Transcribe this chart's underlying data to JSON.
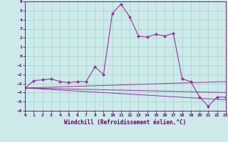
{
  "xlabel": "Windchill (Refroidissement éolien,°C)",
  "bg_color": "#cceaea",
  "grid_color": "#aacccc",
  "line_color": "#993399",
  "xlim": [
    0,
    23
  ],
  "ylim": [
    -6,
    6
  ],
  "xticks": [
    0,
    1,
    2,
    3,
    4,
    5,
    6,
    7,
    8,
    9,
    10,
    11,
    12,
    13,
    14,
    15,
    16,
    17,
    18,
    19,
    20,
    21,
    22,
    23
  ],
  "yticks": [
    -6,
    -5,
    -4,
    -3,
    -2,
    -1,
    0,
    1,
    2,
    3,
    4,
    5,
    6
  ],
  "series": [
    [
      0,
      -3.5
    ],
    [
      1,
      -2.7
    ],
    [
      2,
      -2.6
    ],
    [
      3,
      -2.5
    ],
    [
      4,
      -2.8
    ],
    [
      5,
      -2.9
    ],
    [
      6,
      -2.8
    ],
    [
      7,
      -2.8
    ],
    [
      8,
      -1.2
    ],
    [
      9,
      -2.0
    ],
    [
      10,
      4.7
    ],
    [
      11,
      5.7
    ],
    [
      12,
      4.3
    ],
    [
      13,
      2.2
    ],
    [
      14,
      2.1
    ],
    [
      15,
      2.4
    ],
    [
      16,
      2.2
    ],
    [
      17,
      2.5
    ],
    [
      18,
      -2.5
    ],
    [
      19,
      -2.8
    ],
    [
      20,
      -4.5
    ],
    [
      21,
      -5.5
    ],
    [
      22,
      -4.5
    ],
    [
      23,
      -4.5
    ]
  ],
  "trend_lines": [
    [
      [
        0,
        -3.5
      ],
      [
        23,
        -2.8
      ]
    ],
    [
      [
        0,
        -3.5
      ],
      [
        23,
        -4.0
      ]
    ],
    [
      [
        0,
        -3.5
      ],
      [
        23,
        -4.8
      ]
    ]
  ]
}
